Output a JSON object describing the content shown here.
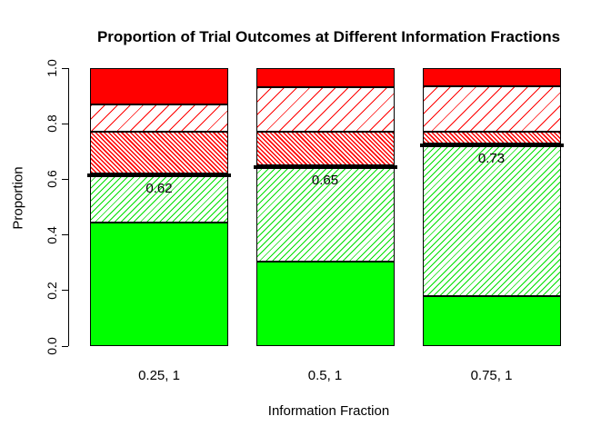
{
  "chart_data": {
    "type": "bar",
    "stacked": true,
    "title": "Proportion of Trial Outcomes at Different Information Fractions",
    "xlabel": "Information Fraction",
    "ylabel": "Proportion",
    "ylim": [
      0,
      1
    ],
    "yticks": [
      0.0,
      0.2,
      0.4,
      0.6,
      0.8,
      1.0
    ],
    "ytick_labels": [
      "0.0",
      "0.2",
      "0.4",
      "0.6",
      "0.8",
      "1.0"
    ],
    "categories": [
      "0.25, 1",
      "0.5, 1",
      "0.75, 1"
    ],
    "series": [
      {
        "name": "solid-green-segment",
        "pattern": "solid-green",
        "values": [
          0.445,
          0.305,
          0.18
        ]
      },
      {
        "name": "hatched-green-segment",
        "pattern": "hatch-green",
        "values": [
          0.175,
          0.345,
          0.55
        ]
      },
      {
        "name": "dense-hatched-red-segment",
        "pattern": "dense-hatch-red",
        "values": [
          0.15,
          0.12,
          0.04
        ]
      },
      {
        "name": "hatched-red-segment",
        "pattern": "hatch-red",
        "values": [
          0.1,
          0.16,
          0.165
        ]
      },
      {
        "name": "solid-red-segment",
        "pattern": "solid-red",
        "values": [
          0.13,
          0.07,
          0.065
        ]
      }
    ],
    "marker_lines": {
      "values": [
        0.62,
        0.65,
        0.73
      ],
      "labels": [
        "0.62",
        "0.65",
        "0.73"
      ],
      "color": "#000000"
    },
    "colors": {
      "green": "#00FF00",
      "red": "#FF0000",
      "hatch_green_line": "#00E000",
      "axis": "#000000",
      "text": "#000000",
      "background": "#FFFFFF"
    },
    "grid": false,
    "legend": null
  }
}
